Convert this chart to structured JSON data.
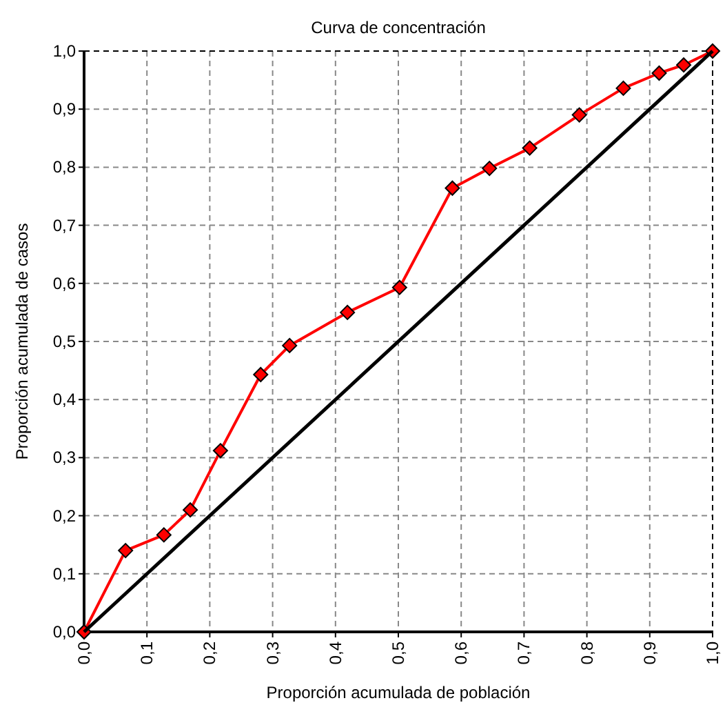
{
  "chart_data": {
    "type": "line",
    "title": "Curva de concentración",
    "xlabel": "Proporción acumulada de población",
    "ylabel": "Proporción acumulada de casos",
    "xlim": [
      0,
      1
    ],
    "ylim": [
      0,
      1
    ],
    "xticks": [
      {
        "value": 0,
        "label": "0,0"
      },
      {
        "value": 0.1,
        "label": "0,1"
      },
      {
        "value": 0.2,
        "label": "0,2"
      },
      {
        "value": 0.3,
        "label": "0,3"
      },
      {
        "value": 0.4,
        "label": "0,4"
      },
      {
        "value": 0.5,
        "label": "0,5"
      },
      {
        "value": 0.6,
        "label": "0,6"
      },
      {
        "value": 0.7,
        "label": "0,7"
      },
      {
        "value": 0.8,
        "label": "0,8"
      },
      {
        "value": 0.9,
        "label": "0,9"
      },
      {
        "value": 1,
        "label": "1,0"
      }
    ],
    "yticks": [
      {
        "value": 0,
        "label": "0,0"
      },
      {
        "value": 0.1,
        "label": "0,1"
      },
      {
        "value": 0.2,
        "label": "0,2"
      },
      {
        "value": 0.3,
        "label": "0,3"
      },
      {
        "value": 0.4,
        "label": "0,4"
      },
      {
        "value": 0.5,
        "label": "0,5"
      },
      {
        "value": 0.6,
        "label": "0,6"
      },
      {
        "value": 0.7,
        "label": "0,7"
      },
      {
        "value": 0.8,
        "label": "0,8"
      },
      {
        "value": 0.9,
        "label": "0,9"
      },
      {
        "value": 1,
        "label": "1,0"
      }
    ],
    "grid": true,
    "line_style": "solid",
    "series": [
      {
        "color": "#ff0000",
        "marker": "diamond",
        "x": [
          0,
          0.066,
          0.127,
          0.169,
          0.217,
          0.281,
          0.327,
          0.419,
          0.502,
          0.586,
          0.645,
          0.709,
          0.788,
          0.858,
          0.915,
          0.954,
          1
        ],
        "values": [
          0,
          0.14,
          0.167,
          0.21,
          0.312,
          0.443,
          0.493,
          0.55,
          0.593,
          0.764,
          0.798,
          0.833,
          0.89,
          0.936,
          0.962,
          0.976,
          1
        ]
      },
      {
        "color": "#000000",
        "marker": "none",
        "x": [
          0,
          1
        ],
        "values": [
          0,
          1
        ]
      }
    ]
  }
}
